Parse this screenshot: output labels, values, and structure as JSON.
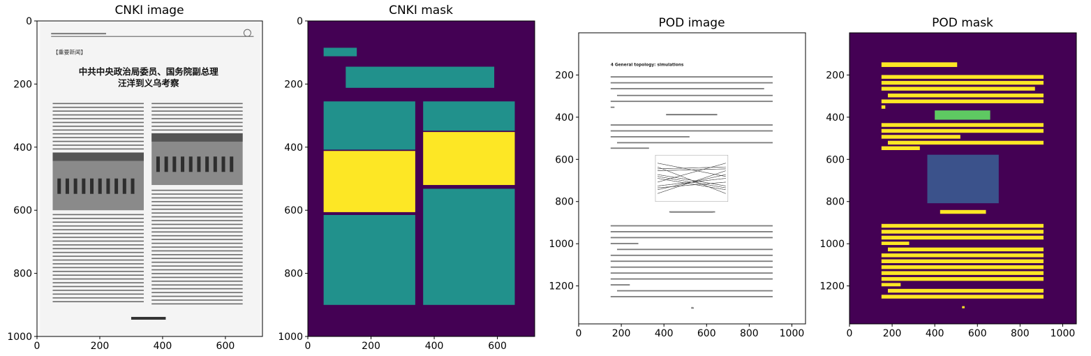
{
  "figure": {
    "panels": [
      {
        "id": "cnki_image",
        "title": "CNKI image"
      },
      {
        "id": "cnki_mask",
        "title": "CNKI mask"
      },
      {
        "id": "pod_image",
        "title": "POD image"
      },
      {
        "id": "pod_mask",
        "title": "POD mask"
      }
    ]
  },
  "colors": {
    "background": "#440154",
    "teal": "#21918c",
    "yellow": "#fde725",
    "green": "#5ec962",
    "blue": "#3b528b",
    "paper": "#ffffff",
    "scan_paper": "#f4f4f4"
  },
  "chart_data": [
    {
      "type": "image",
      "title": "CNKI image",
      "xlim": [
        0,
        718
      ],
      "ylim": [
        1000,
        0
      ],
      "xticks": [
        0,
        200,
        400,
        600
      ],
      "yticks": [
        0,
        200,
        400,
        600,
        800,
        1000
      ],
      "page": {
        "x0": 10,
        "y0": 5,
        "x1": 712,
        "y1": 1000
      },
      "heading": {
        "line1": "中共中央政治局委员、国务院副总理",
        "line2": "汪洋到义乌考察"
      },
      "tag": "【重要新闻】",
      "photos": [
        {
          "x0": 50,
          "y0": 417,
          "x1": 340,
          "y1": 600
        },
        {
          "x0": 365,
          "y0": 356,
          "x1": 655,
          "y1": 520
        }
      ]
    },
    {
      "type": "mask",
      "title": "CNKI mask",
      "xlim": [
        0,
        718
      ],
      "ylim": [
        1000,
        0
      ],
      "xticks": [
        0,
        200,
        400,
        600
      ],
      "yticks": [
        0,
        200,
        400,
        600,
        800,
        1000
      ],
      "regions": [
        {
          "x0": 50,
          "y0": 85,
          "x1": 155,
          "y1": 112,
          "class": "teal"
        },
        {
          "x0": 120,
          "y0": 145,
          "x1": 590,
          "y1": 212,
          "class": "teal"
        },
        {
          "x0": 50,
          "y0": 255,
          "x1": 340,
          "y1": 408,
          "class": "teal"
        },
        {
          "x0": 50,
          "y0": 412,
          "x1": 340,
          "y1": 606,
          "class": "yellow"
        },
        {
          "x0": 50,
          "y0": 615,
          "x1": 340,
          "y1": 900,
          "class": "teal"
        },
        {
          "x0": 365,
          "y0": 255,
          "x1": 655,
          "y1": 348,
          "class": "teal"
        },
        {
          "x0": 365,
          "y0": 352,
          "x1": 655,
          "y1": 520,
          "class": "yellow"
        },
        {
          "x0": 365,
          "y0": 532,
          "x1": 655,
          "y1": 900,
          "class": "teal"
        }
      ]
    },
    {
      "type": "image",
      "title": "POD image",
      "xlim": [
        0,
        1064
      ],
      "ylim": [
        1380,
        0
      ],
      "xticks": [
        0,
        200,
        400,
        600,
        800,
        1000
      ],
      "yticks": [
        200,
        400,
        600,
        800,
        1000,
        1200
      ],
      "section_heading": "4   General topology: simulations",
      "figure_box": {
        "x0": 360,
        "y0": 580,
        "x1": 700,
        "y1": 800
      }
    },
    {
      "type": "mask",
      "title": "POD mask",
      "xlim": [
        0,
        1064
      ],
      "ylim": [
        1380,
        0
      ],
      "xticks": [
        0,
        200,
        400,
        600,
        800,
        1000
      ],
      "yticks": [
        200,
        400,
        600,
        800,
        1000,
        1200
      ],
      "regions": [
        {
          "x0": 150,
          "y0": 140,
          "x1": 505,
          "y1": 162,
          "class": "yellow"
        },
        {
          "x0": 150,
          "y0": 200,
          "x1": 910,
          "y1": 218,
          "class": "yellow"
        },
        {
          "x0": 150,
          "y0": 228,
          "x1": 910,
          "y1": 246,
          "class": "yellow"
        },
        {
          "x0": 150,
          "y0": 256,
          "x1": 870,
          "y1": 274,
          "class": "yellow"
        },
        {
          "x0": 180,
          "y0": 288,
          "x1": 910,
          "y1": 306,
          "class": "yellow"
        },
        {
          "x0": 150,
          "y0": 316,
          "x1": 910,
          "y1": 334,
          "class": "yellow"
        },
        {
          "x0": 150,
          "y0": 344,
          "x1": 168,
          "y1": 360,
          "class": "yellow"
        },
        {
          "x0": 400,
          "y0": 368,
          "x1": 660,
          "y1": 412,
          "class": "green"
        },
        {
          "x0": 150,
          "y0": 428,
          "x1": 910,
          "y1": 446,
          "class": "yellow"
        },
        {
          "x0": 150,
          "y0": 456,
          "x1": 910,
          "y1": 474,
          "class": "yellow"
        },
        {
          "x0": 150,
          "y0": 484,
          "x1": 520,
          "y1": 502,
          "class": "yellow"
        },
        {
          "x0": 180,
          "y0": 512,
          "x1": 910,
          "y1": 530,
          "class": "yellow"
        },
        {
          "x0": 150,
          "y0": 538,
          "x1": 330,
          "y1": 556,
          "class": "yellow"
        },
        {
          "x0": 365,
          "y0": 578,
          "x1": 700,
          "y1": 808,
          "class": "blue"
        },
        {
          "x0": 425,
          "y0": 840,
          "x1": 640,
          "y1": 858,
          "class": "yellow"
        },
        {
          "x0": 150,
          "y0": 906,
          "x1": 910,
          "y1": 924,
          "class": "yellow"
        },
        {
          "x0": 150,
          "y0": 934,
          "x1": 910,
          "y1": 952,
          "class": "yellow"
        },
        {
          "x0": 150,
          "y0": 962,
          "x1": 910,
          "y1": 980,
          "class": "yellow"
        },
        {
          "x0": 150,
          "y0": 990,
          "x1": 280,
          "y1": 1006,
          "class": "yellow"
        },
        {
          "x0": 180,
          "y0": 1018,
          "x1": 910,
          "y1": 1036,
          "class": "yellow"
        },
        {
          "x0": 150,
          "y0": 1046,
          "x1": 910,
          "y1": 1064,
          "class": "yellow"
        },
        {
          "x0": 150,
          "y0": 1074,
          "x1": 910,
          "y1": 1092,
          "class": "yellow"
        },
        {
          "x0": 150,
          "y0": 1102,
          "x1": 910,
          "y1": 1120,
          "class": "yellow"
        },
        {
          "x0": 150,
          "y0": 1130,
          "x1": 910,
          "y1": 1148,
          "class": "yellow"
        },
        {
          "x0": 150,
          "y0": 1158,
          "x1": 910,
          "y1": 1176,
          "class": "yellow"
        },
        {
          "x0": 150,
          "y0": 1186,
          "x1": 240,
          "y1": 1202,
          "class": "yellow"
        },
        {
          "x0": 180,
          "y0": 1214,
          "x1": 910,
          "y1": 1232,
          "class": "yellow"
        },
        {
          "x0": 150,
          "y0": 1242,
          "x1": 910,
          "y1": 1260,
          "class": "yellow"
        },
        {
          "x0": 528,
          "y0": 1296,
          "x1": 540,
          "y1": 1306,
          "class": "yellow"
        }
      ]
    }
  ]
}
